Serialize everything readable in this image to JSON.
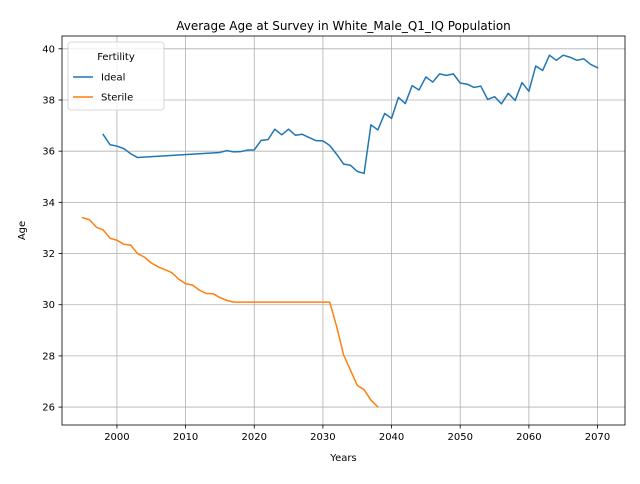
{
  "chart_data": {
    "type": "line",
    "title": "Average Age at Survey in White_Male_Q1_IQ Population",
    "xlabel": "Years",
    "ylabel": "Age",
    "xlim": [
      1992,
      2074
    ],
    "ylim": [
      25.3,
      40.5
    ],
    "xticks": [
      2000,
      2010,
      2020,
      2030,
      2040,
      2050,
      2060,
      2070
    ],
    "yticks": [
      26,
      28,
      30,
      32,
      34,
      36,
      38,
      40
    ],
    "grid": true,
    "legend": {
      "title": "Fertility",
      "placement": "top-left"
    },
    "series": [
      {
        "name": "Ideal",
        "color": "#1f77b4",
        "x": [
          1998,
          1999,
          2000,
          2001,
          2002,
          2003,
          2015,
          2016,
          2017,
          2018,
          2019,
          2020,
          2021,
          2022,
          2023,
          2024,
          2025,
          2026,
          2027,
          2028,
          2029,
          2030,
          2031,
          2032,
          2033,
          2034,
          2035,
          2036,
          2037,
          2038,
          2039,
          2040,
          2041,
          2042,
          2043,
          2044,
          2045,
          2046,
          2047,
          2048,
          2049,
          2050,
          2051,
          2052,
          2053,
          2054,
          2055,
          2056,
          2057,
          2058,
          2059,
          2060,
          2061,
          2062,
          2063,
          2064,
          2065,
          2066,
          2067,
          2068,
          2069,
          2070
        ],
        "y": [
          36.65,
          36.25,
          36.2,
          36.1,
          35.9,
          35.75,
          35.95,
          36.02,
          35.97,
          35.98,
          36.04,
          36.05,
          36.42,
          36.45,
          36.86,
          36.64,
          36.86,
          36.62,
          36.66,
          36.53,
          36.41,
          36.4,
          36.22,
          35.88,
          35.5,
          35.45,
          35.21,
          35.13,
          37.03,
          36.83,
          37.47,
          37.28,
          38.1,
          37.86,
          38.56,
          38.39,
          38.9,
          38.7,
          39.02,
          38.96,
          39.02,
          38.66,
          38.62,
          38.49,
          38.54,
          38.02,
          38.13,
          37.85,
          38.26,
          37.98,
          38.68,
          38.34,
          39.33,
          39.15,
          39.75,
          39.55,
          39.75,
          39.67,
          39.55,
          39.61,
          39.39,
          39.26
        ]
      },
      {
        "name": "Sterile",
        "color": "#ff7f0e",
        "x": [
          1995,
          1996,
          1997,
          1998,
          1999,
          2000,
          2001,
          2002,
          2003,
          2004,
          2005,
          2006,
          2007,
          2008,
          2009,
          2010,
          2011,
          2012,
          2013,
          2014,
          2015,
          2016,
          2017,
          2018,
          2019,
          2020,
          2021,
          2022,
          2023,
          2024,
          2025,
          2026,
          2027,
          2028,
          2029,
          2030,
          2031,
          2032,
          2033,
          2034,
          2035,
          2036,
          2037,
          2038
        ],
        "y": [
          33.4,
          33.32,
          33.03,
          32.92,
          32.6,
          32.52,
          32.36,
          32.33,
          32.0,
          31.86,
          31.63,
          31.48,
          31.37,
          31.25,
          31.0,
          30.82,
          30.77,
          30.57,
          30.44,
          30.43,
          30.28,
          30.17,
          30.1,
          30.1,
          30.1,
          30.1,
          30.1,
          30.1,
          30.1,
          30.1,
          30.1,
          30.1,
          30.1,
          30.1,
          30.1,
          30.1,
          30.1,
          29.15,
          28.05,
          27.45,
          26.85,
          26.68,
          26.27,
          26.01
        ]
      }
    ]
  }
}
